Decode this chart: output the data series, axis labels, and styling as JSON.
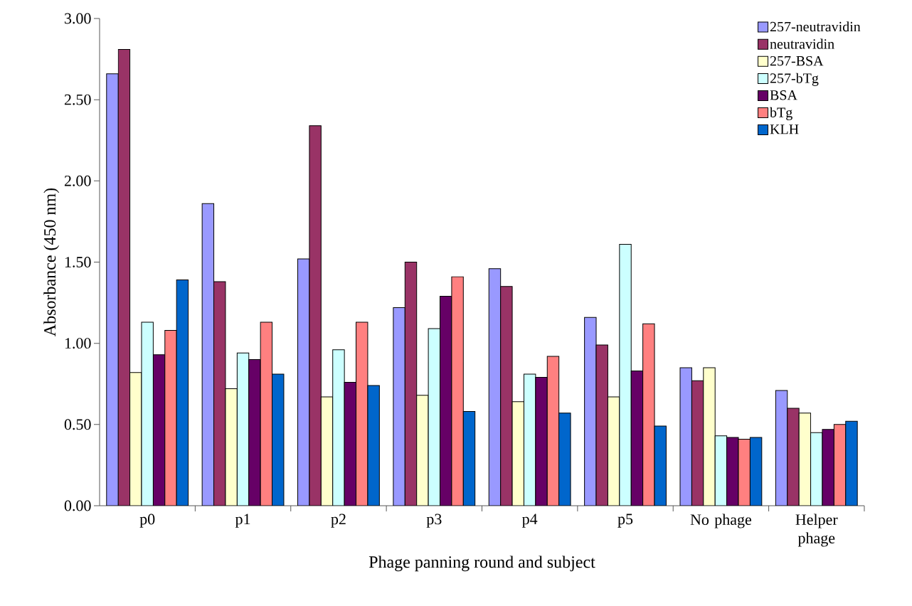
{
  "chart_data": {
    "type": "bar",
    "xlabel": "Phage panning round and subject",
    "ylabel": "Absorbance (450 nm)",
    "categories": [
      "p0",
      "p1",
      "p2",
      "p3",
      "p4",
      "p5",
      "No phage",
      "Helper phage"
    ],
    "ylim": [
      0,
      3
    ],
    "yticks": [
      {
        "value": 0,
        "label": "0.00"
      },
      {
        "value": 0.5,
        "label": "0.50"
      },
      {
        "value": 1,
        "label": "1.00"
      },
      {
        "value": 1.5,
        "label": "1.50"
      },
      {
        "value": 2,
        "label": "2.00"
      },
      {
        "value": 2.5,
        "label": "2.50"
      },
      {
        "value": 3,
        "label": "3.00"
      }
    ],
    "grid": false,
    "legend": "top right",
    "series": [
      {
        "name": "257-neutravidin",
        "color": "#9999ff",
        "values": [
          2.66,
          1.86,
          1.52,
          1.22,
          1.46,
          1.16,
          0.85,
          0.71
        ]
      },
      {
        "name": "neutravidin",
        "color": "#993366",
        "values": [
          2.81,
          1.38,
          2.34,
          1.5,
          1.35,
          0.99,
          0.77,
          0.6
        ]
      },
      {
        "name": "257-BSA",
        "color": "#ffffcc",
        "values": [
          0.82,
          0.72,
          0.67,
          0.68,
          0.64,
          0.67,
          0.85,
          0.57
        ]
      },
      {
        "name": "257-bTg",
        "color": "#ccffff",
        "values": [
          1.13,
          0.94,
          0.96,
          1.09,
          0.81,
          1.61,
          0.43,
          0.45
        ]
      },
      {
        "name": "BSA",
        "color": "#660066",
        "values": [
          0.93,
          0.9,
          0.76,
          1.29,
          0.79,
          0.83,
          0.42,
          0.47
        ]
      },
      {
        "name": "bTg",
        "color": "#ff8080",
        "values": [
          1.08,
          1.13,
          1.13,
          1.41,
          0.92,
          1.12,
          0.41,
          0.5
        ]
      },
      {
        "name": "KLH",
        "color": "#0066cc",
        "values": [
          1.39,
          0.81,
          0.74,
          0.58,
          0.57,
          0.49,
          0.42,
          0.52
        ]
      }
    ]
  }
}
